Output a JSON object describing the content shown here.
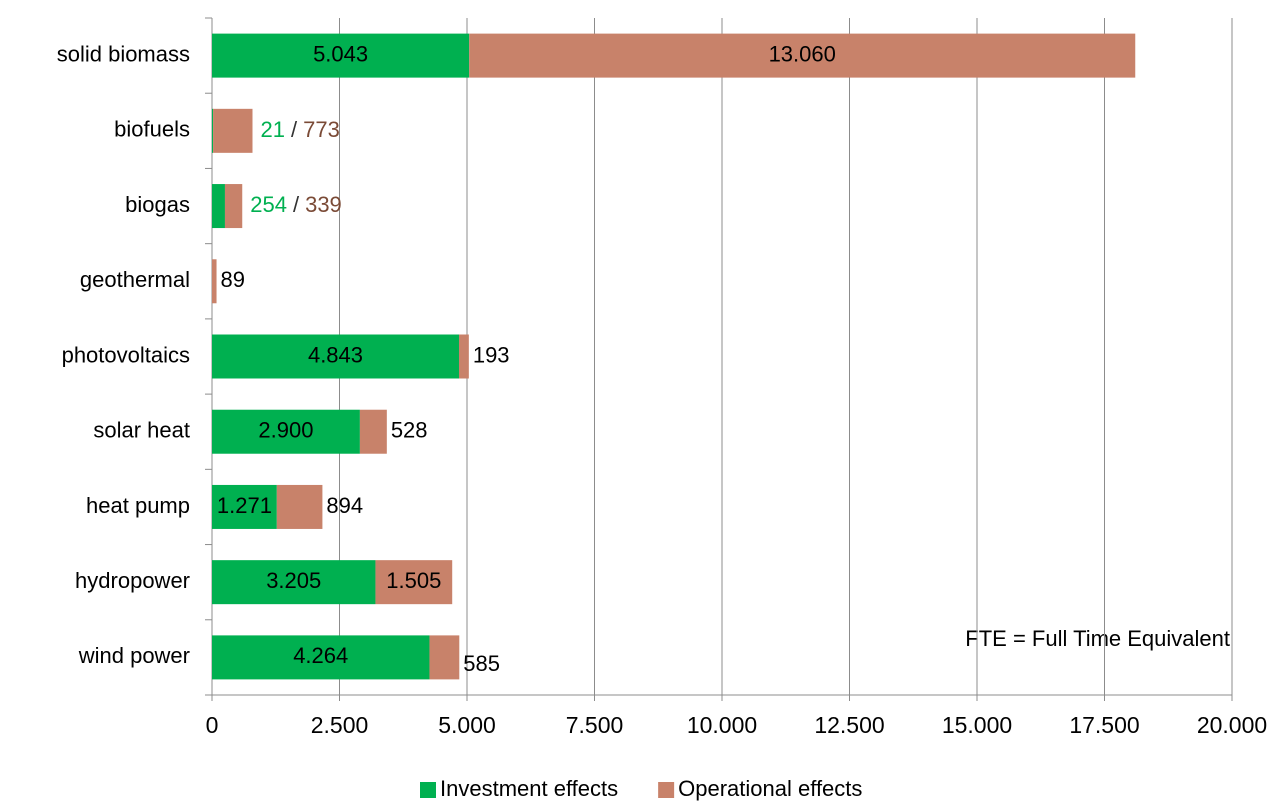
{
  "chart_data": {
    "type": "stacked_bar_horizontal",
    "categories": [
      "solid biomass",
      "biofuels",
      "biogas",
      "geothermal",
      "photovoltaics",
      "solar heat",
      "heat pump",
      "hydropower",
      "wind power"
    ],
    "series": [
      {
        "name": "Investment effects",
        "color": "#00b050",
        "values": [
          5043,
          21,
          254,
          0,
          4843,
          2900,
          1271,
          3205,
          4264
        ],
        "value_labels": [
          "5.043",
          "21",
          "254",
          null,
          "4.843",
          "2.900",
          "1.271",
          "3.205",
          "4.264"
        ]
      },
      {
        "name": "Operational effects",
        "color": "#c8826a",
        "values": [
          13060,
          773,
          339,
          89,
          193,
          528,
          894,
          1505,
          585
        ],
        "value_labels": [
          "13.060",
          "773",
          "339",
          "89",
          "193",
          "528",
          "894",
          "1.505",
          "585"
        ]
      }
    ],
    "label_separator": "/",
    "xlim": [
      0,
      20000
    ],
    "xticks": [
      0,
      {
        "value": 2500,
        "label": "2.500"
      },
      {
        "value": 5000,
        "label": "5.000"
      },
      {
        "value": 7500,
        "label": "7.500"
      },
      {
        "value": 10000,
        "label": "10.000"
      },
      {
        "value": 12500,
        "label": "12.500"
      },
      {
        "value": 15000,
        "label": "15.000"
      },
      {
        "value": 17500,
        "label": "17.500"
      },
      {
        "value": 20000,
        "label": "20.000"
      }
    ],
    "grid": true,
    "annotation": "FTE = Full Time Equivalent",
    "legend": "bottom"
  }
}
